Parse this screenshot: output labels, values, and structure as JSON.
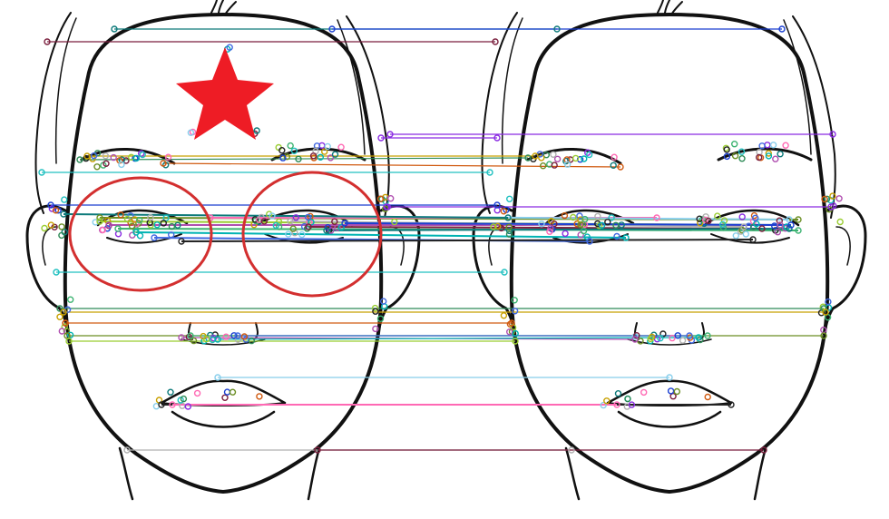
{
  "scene": {
    "description_tags": [
      "two-face-line-drawings",
      "feature-match-lines",
      "keypoints"
    ],
    "colors": {
      "background": "#ffffff",
      "outline": "#111111",
      "star": "#ee1c25",
      "circle": "#d32f2f"
    },
    "annotations": {
      "star": "star-mark",
      "circles": [
        "left-eye-circle",
        "right-eye-circle"
      ]
    }
  },
  "match_colors": [
    "#7a1f3d",
    "#0d7a7a",
    "#1a3fd1",
    "#8a2be2",
    "#20c0c0",
    "#2e8b57",
    "#c8a000",
    "#d05a10",
    "#6b8e23",
    "#9acd32",
    "#b04fb0",
    "#3cb371",
    "#00b3b3",
    "#4169e1",
    "#222222",
    "#ff69b4",
    "#87ceeb",
    "#b0b0b0"
  ]
}
